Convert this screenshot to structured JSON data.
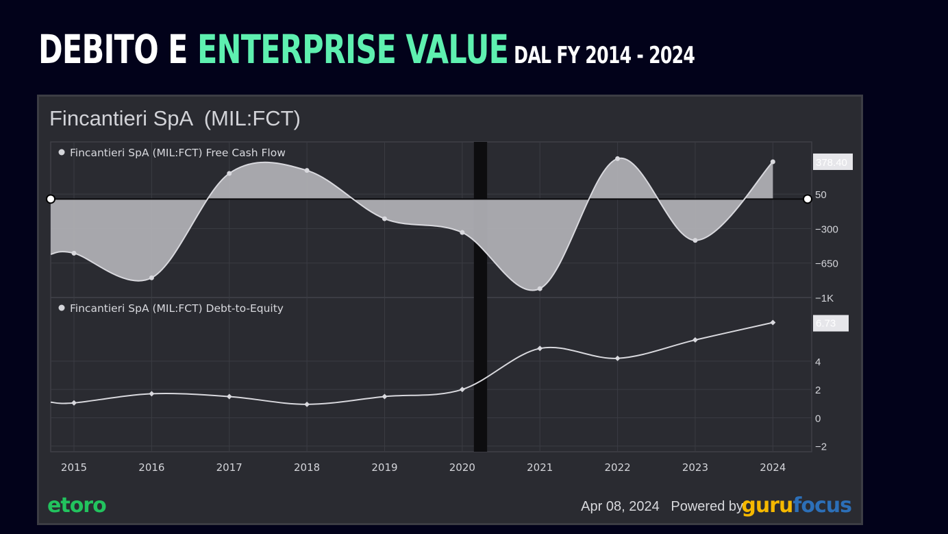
{
  "slide": {
    "title_part1": "Debito e ",
    "title_part2": "Enterprise Value",
    "title_part3": " dal FY 2014 - 2024"
  },
  "panel": {
    "company": "Fincantieri SpA  (MIL:FCT)",
    "date": "Apr 08, 2024",
    "powered_by": "Powered by",
    "logo_etoro": "etoro",
    "logo_guru_part1": "guru",
    "logo_guru_part2": "focus",
    "colors": {
      "background": "#2a2b31",
      "area_fill": "#aeaeb3",
      "line": "#d9d9de",
      "accent_title": "#5ef0b0"
    }
  },
  "chart_data": [
    {
      "type": "area",
      "legend": "Fincantieri SpA (MIL:FCT) Free Cash Flow",
      "x": [
        2014.7,
        2015,
        2016,
        2017,
        2018,
        2019,
        2020,
        2021,
        2022,
        2023,
        2024
      ],
      "values": [
        -560,
        -550,
        -800,
        260,
        290,
        -200,
        -340,
        -910,
        410,
        -420,
        378.4
      ],
      "last_value_label": "378.40",
      "yticks": [
        50,
        -300,
        -650,
        -1000
      ],
      "ytick_labels": [
        "50",
        "−300",
        "−650",
        "−1K"
      ],
      "ylim": [
        -1000,
        580
      ],
      "baseline": 0
    },
    {
      "type": "line",
      "legend": "Fincantieri SpA (MIL:FCT) Debt-to-Equity",
      "x": [
        2014.7,
        2015,
        2016,
        2017,
        2018,
        2019,
        2020,
        2021,
        2022,
        2023,
        2024
      ],
      "values": [
        1.1,
        1.05,
        1.7,
        1.5,
        0.95,
        1.5,
        2.0,
        4.9,
        4.2,
        5.5,
        6.73
      ],
      "last_value_label": "6.73",
      "yticks": [
        4,
        2,
        0,
        -2
      ],
      "ytick_labels": [
        "4",
        "2",
        "0",
        "−2"
      ],
      "ylim": [
        -2.4,
        8.5
      ]
    }
  ],
  "x_axis": {
    "ticks": [
      2015,
      2016,
      2017,
      2018,
      2019,
      2020,
      2021,
      2022,
      2023,
      2024
    ],
    "labels": [
      "2015",
      "2016",
      "2017",
      "2018",
      "2019",
      "2020",
      "2021",
      "2022",
      "2023",
      "2024"
    ],
    "shaded_band": [
      2020.15,
      2020.32
    ]
  }
}
